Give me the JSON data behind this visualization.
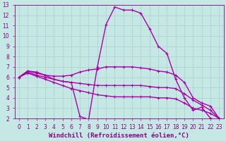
{
  "title": "",
  "xlabel": "Windchill (Refroidissement éolien,°C)",
  "ylabel": "",
  "bg_color": "#c5e8e5",
  "line_color": "#aa00aa",
  "grid_color": "#aacfcc",
  "xlim": [
    -0.5,
    23.5
  ],
  "ylim": [
    2,
    13
  ],
  "xticks": [
    0,
    1,
    2,
    3,
    4,
    5,
    6,
    7,
    8,
    9,
    10,
    11,
    12,
    13,
    14,
    15,
    16,
    17,
    18,
    19,
    20,
    21,
    22,
    23
  ],
  "yticks": [
    2,
    3,
    4,
    5,
    6,
    7,
    8,
    9,
    10,
    11,
    12,
    13
  ],
  "lines": [
    {
      "x": [
        0,
        1,
        2,
        3,
        4,
        5,
        6,
        7,
        8,
        9,
        10,
        11,
        12,
        13,
        14,
        15,
        16,
        17,
        18,
        19,
        20,
        21,
        22,
        23
      ],
      "y": [
        6.0,
        6.6,
        6.5,
        6.2,
        5.8,
        5.6,
        5.5,
        2.2,
        1.9,
        7.0,
        11.1,
        12.8,
        12.5,
        12.5,
        12.2,
        10.7,
        9.0,
        8.3,
        5.8,
        4.0,
        2.8,
        3.1,
        2.0,
        1.9
      ]
    },
    {
      "x": [
        0,
        1,
        2,
        3,
        4,
        5,
        6,
        7,
        8,
        9,
        10,
        11,
        12,
        13,
        14,
        15,
        16,
        17,
        18,
        19,
        20,
        21,
        22,
        23
      ],
      "y": [
        6.0,
        6.6,
        6.4,
        6.2,
        6.1,
        6.1,
        6.2,
        6.5,
        6.7,
        6.8,
        7.0,
        7.0,
        7.0,
        7.0,
        6.9,
        6.8,
        6.6,
        6.5,
        6.2,
        5.5,
        4.0,
        3.5,
        3.2,
        2.0
      ]
    },
    {
      "x": [
        0,
        1,
        2,
        3,
        4,
        5,
        6,
        7,
        8,
        9,
        10,
        11,
        12,
        13,
        14,
        15,
        16,
        17,
        18,
        19,
        20,
        21,
        22,
        23
      ],
      "y": [
        6.0,
        6.5,
        6.2,
        6.0,
        5.8,
        5.6,
        5.5,
        5.4,
        5.3,
        5.2,
        5.2,
        5.2,
        5.2,
        5.2,
        5.2,
        5.1,
        5.0,
        5.0,
        4.9,
        4.4,
        3.8,
        3.3,
        2.8,
        2.0
      ]
    },
    {
      "x": [
        0,
        1,
        2,
        3,
        4,
        5,
        6,
        7,
        8,
        9,
        10,
        11,
        12,
        13,
        14,
        15,
        16,
        17,
        18,
        19,
        20,
        21,
        22,
        23
      ],
      "y": [
        6.0,
        6.4,
        6.1,
        5.8,
        5.5,
        5.2,
        4.9,
        4.7,
        4.5,
        4.3,
        4.2,
        4.1,
        4.1,
        4.1,
        4.1,
        4.1,
        4.0,
        4.0,
        3.9,
        3.5,
        3.0,
        2.8,
        2.5,
        2.0
      ]
    }
  ],
  "marker": "+",
  "markersize": 3.5,
  "linewidth": 1.0,
  "xlabel_fontsize": 6.5,
  "tick_fontsize": 5.5,
  "tick_color": "#880088",
  "label_color": "#880088",
  "spine_color": "#880088"
}
